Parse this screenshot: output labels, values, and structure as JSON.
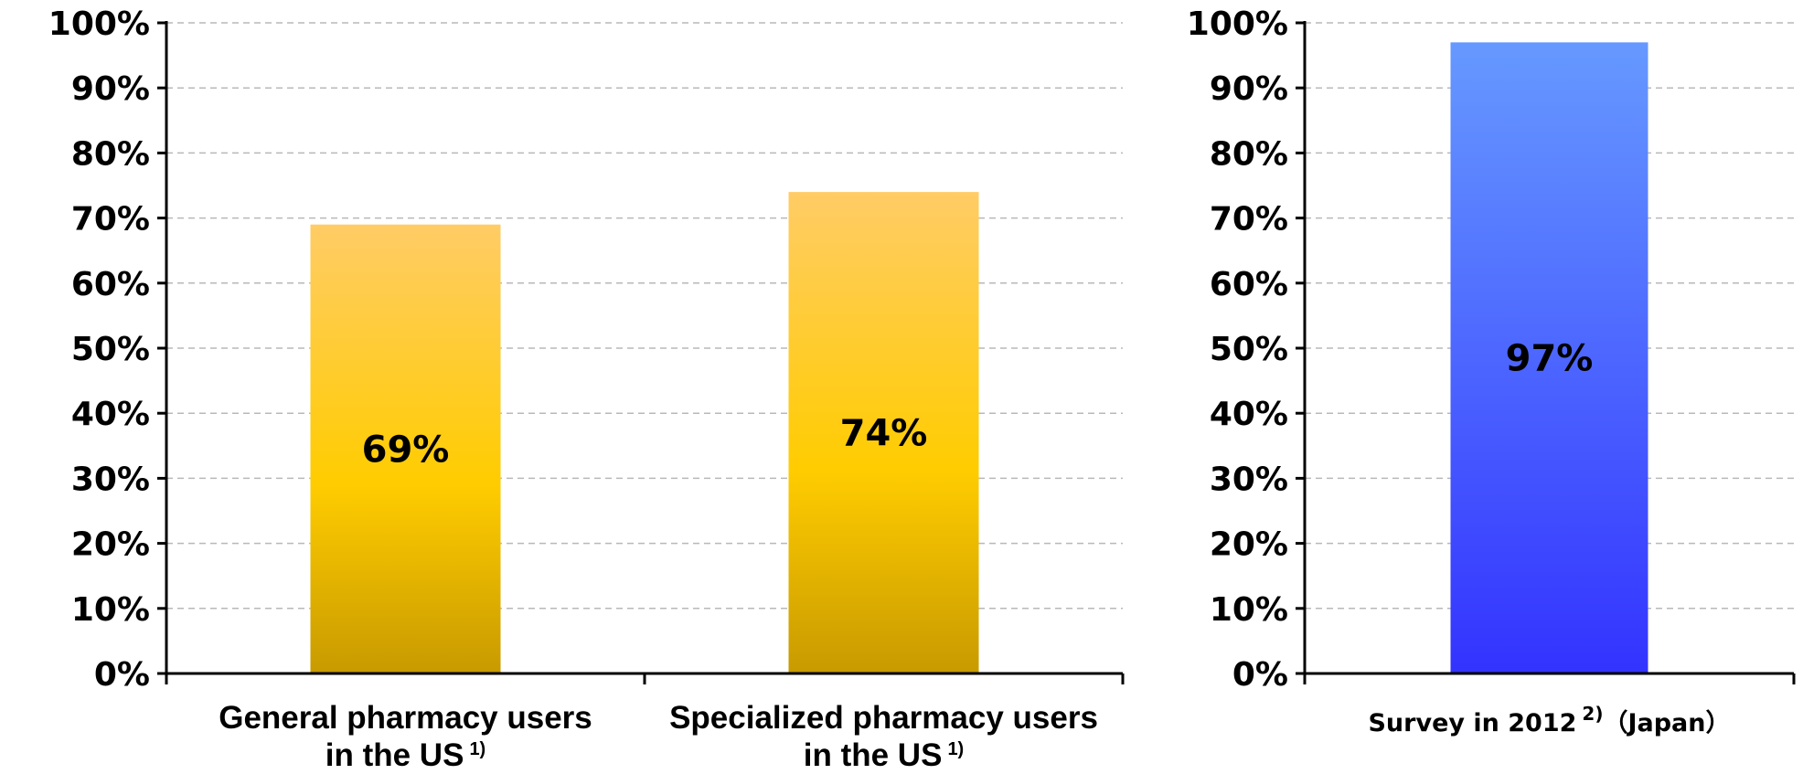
{
  "chart_data": [
    {
      "type": "bar",
      "categories": [
        {
          "lines": [
            "General pharmacy users",
            "in the US"
          ],
          "footnote": "1)"
        },
        {
          "lines": [
            "Specialized pharmacy users",
            "in the US"
          ],
          "footnote": "1)"
        }
      ],
      "values": [
        69,
        74
      ],
      "data_labels": [
        "69%",
        "74%"
      ],
      "ylim": [
        0,
        100
      ],
      "yticks": [
        "0%",
        "10%",
        "20%",
        "30%",
        "40%",
        "50%",
        "60%",
        "70%",
        "80%",
        "90%",
        "100%"
      ],
      "grid": "horizontal dashed",
      "bar_color": {
        "top": "#FFCC66",
        "mid": "#FFCC00",
        "bottom": "#C89A00"
      }
    },
    {
      "type": "bar",
      "categories": [
        {
          "lines": [
            "Survey in 2012"
          ],
          "footnote": "2)",
          "suffix": "（Japan）"
        }
      ],
      "values": [
        97
      ],
      "data_labels": [
        "97%"
      ],
      "ylim": [
        0,
        100
      ],
      "yticks": [
        "0%",
        "10%",
        "20%",
        "30%",
        "40%",
        "50%",
        "60%",
        "70%",
        "80%",
        "90%",
        "100%"
      ],
      "grid": "horizontal dashed",
      "bar_color": {
        "top": "#6699FF",
        "bottom": "#3333FF"
      }
    }
  ]
}
